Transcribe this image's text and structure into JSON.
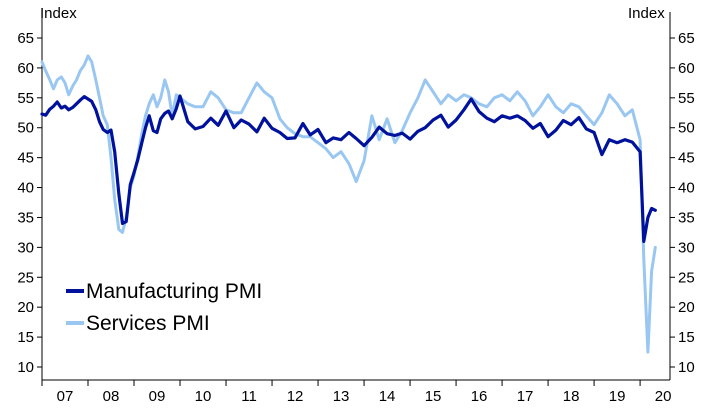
{
  "chart_data": {
    "type": "line",
    "y_unit_left": "Index",
    "y_unit_right": "Index",
    "ylim": [
      10,
      65
    ],
    "y_ticks": [
      10,
      15,
      20,
      25,
      30,
      35,
      40,
      45,
      50,
      55,
      60,
      65
    ],
    "x_start_year": 2007,
    "x_categories": [
      "07",
      "08",
      "09",
      "10",
      "11",
      "12",
      "13",
      "14",
      "15",
      "16",
      "17",
      "18",
      "19",
      "20"
    ],
    "grid": false,
    "legend_position": "bottom-left",
    "colors": {
      "manufacturing": "#00129c",
      "services": "#99c7f2",
      "axis": "#000000"
    },
    "series": [
      {
        "name": "Manufacturing PMI",
        "key": "manufacturing",
        "x": [
          2007.0,
          2007.08,
          2007.17,
          2007.25,
          2007.33,
          2007.42,
          2007.5,
          2007.58,
          2007.67,
          2007.75,
          2007.83,
          2007.92,
          2008.0,
          2008.08,
          2008.17,
          2008.25,
          2008.33,
          2008.42,
          2008.5,
          2008.58,
          2008.67,
          2008.75,
          2008.83,
          2008.92,
          2009.0,
          2009.08,
          2009.17,
          2009.25,
          2009.33,
          2009.42,
          2009.5,
          2009.58,
          2009.67,
          2009.75,
          2009.83,
          2009.92,
          2010.0,
          2010.17,
          2010.33,
          2010.5,
          2010.67,
          2010.83,
          2011.0,
          2011.17,
          2011.33,
          2011.5,
          2011.67,
          2011.83,
          2012.0,
          2012.17,
          2012.33,
          2012.5,
          2012.67,
          2012.83,
          2013.0,
          2013.17,
          2013.33,
          2013.5,
          2013.67,
          2013.83,
          2014.0,
          2014.17,
          2014.33,
          2014.5,
          2014.67,
          2014.83,
          2015.0,
          2015.17,
          2015.33,
          2015.5,
          2015.67,
          2015.83,
          2016.0,
          2016.17,
          2016.33,
          2016.5,
          2016.67,
          2016.83,
          2017.0,
          2017.17,
          2017.33,
          2017.5,
          2017.67,
          2017.83,
          2018.0,
          2018.17,
          2018.33,
          2018.5,
          2018.67,
          2018.83,
          2019.0,
          2019.17,
          2019.33,
          2019.5,
          2019.67,
          2019.83,
          2020.0,
          2020.08,
          2020.17,
          2020.25,
          2020.33
        ],
        "values": [
          52.3,
          52.1,
          53.1,
          53.6,
          54.3,
          53.3,
          53.6,
          53.0,
          53.4,
          54.0,
          54.6,
          55.2,
          54.8,
          54.4,
          53.0,
          51.0,
          49.7,
          49.2,
          49.6,
          46.0,
          39.0,
          34.0,
          34.3,
          40.5,
          42.5,
          44.6,
          47.5,
          50.0,
          52.0,
          49.5,
          49.2,
          51.5,
          52.4,
          52.8,
          51.5,
          53.2,
          55.3,
          51.0,
          49.8,
          50.2,
          51.6,
          50.4,
          52.8,
          50.0,
          51.3,
          50.6,
          49.3,
          51.6,
          49.9,
          49.2,
          48.2,
          48.3,
          50.7,
          48.8,
          49.7,
          47.5,
          48.3,
          48.0,
          49.2,
          48.2,
          47.0,
          48.4,
          50.1,
          49.0,
          48.7,
          49.1,
          48.1,
          49.4,
          50.0,
          51.3,
          52.1,
          50.1,
          51.3,
          53.0,
          54.8,
          52.7,
          51.6,
          51.0,
          52.0,
          51.6,
          52.0,
          51.2,
          49.9,
          50.7,
          48.5,
          49.6,
          51.2,
          50.5,
          51.7,
          49.8,
          49.2,
          45.5,
          48.0,
          47.5,
          48.0,
          47.6,
          46.0,
          31.0,
          35.0,
          36.5,
          36.2
        ],
        "_note_ignore": ""
      },
      {
        "name": "Services PMI",
        "key": "services",
        "x": [
          2007.0,
          2007.08,
          2007.17,
          2007.25,
          2007.33,
          2007.42,
          2007.5,
          2007.58,
          2007.67,
          2007.75,
          2007.83,
          2007.92,
          2008.0,
          2008.08,
          2008.17,
          2008.25,
          2008.33,
          2008.42,
          2008.5,
          2008.58,
          2008.67,
          2008.75,
          2008.83,
          2008.92,
          2009.0,
          2009.08,
          2009.17,
          2009.25,
          2009.33,
          2009.42,
          2009.5,
          2009.58,
          2009.67,
          2009.75,
          2009.83,
          2009.92,
          2010.0,
          2010.17,
          2010.33,
          2010.5,
          2010.67,
          2010.83,
          2011.0,
          2011.17,
          2011.33,
          2011.5,
          2011.67,
          2011.83,
          2012.0,
          2012.17,
          2012.33,
          2012.5,
          2012.67,
          2012.83,
          2013.0,
          2013.17,
          2013.33,
          2013.5,
          2013.67,
          2013.83,
          2014.0,
          2014.17,
          2014.33,
          2014.5,
          2014.67,
          2014.83,
          2015.0,
          2015.17,
          2015.33,
          2015.5,
          2015.67,
          2015.83,
          2016.0,
          2016.17,
          2016.33,
          2016.5,
          2016.67,
          2016.83,
          2017.0,
          2017.17,
          2017.33,
          2017.5,
          2017.67,
          2017.83,
          2018.0,
          2018.17,
          2018.33,
          2018.5,
          2018.67,
          2018.83,
          2019.0,
          2019.17,
          2019.33,
          2019.5,
          2019.67,
          2019.83,
          2020.0,
          2020.08,
          2020.17,
          2020.25,
          2020.33
        ],
        "values": [
          61.0,
          59.5,
          58.0,
          56.5,
          58.0,
          58.5,
          57.5,
          55.5,
          57.0,
          58.0,
          59.5,
          60.5,
          62.0,
          61.0,
          58.0,
          55.0,
          52.0,
          50.5,
          45.0,
          38.0,
          33.0,
          32.5,
          35.0,
          40.0,
          42.0,
          45.0,
          49.0,
          52.0,
          54.0,
          55.5,
          53.5,
          55.0,
          58.0,
          56.0,
          52.0,
          55.5,
          55.0,
          54.0,
          53.5,
          53.5,
          56.0,
          55.0,
          53.0,
          52.5,
          52.5,
          55.0,
          57.5,
          56.0,
          55.0,
          51.5,
          50.0,
          49.0,
          48.5,
          48.5,
          47.5,
          46.5,
          45.0,
          46.0,
          44.0,
          41.0,
          44.5,
          52.0,
          48.0,
          51.5,
          47.5,
          49.5,
          52.5,
          55.0,
          58.0,
          56.0,
          54.0,
          55.5,
          54.5,
          55.5,
          55.0,
          54.0,
          53.5,
          55.0,
          55.5,
          54.5,
          56.0,
          54.5,
          52.0,
          53.5,
          55.5,
          53.5,
          52.5,
          54.0,
          53.5,
          52.0,
          50.5,
          52.5,
          55.5,
          54.0,
          52.0,
          53.0,
          48.0,
          28.0,
          12.5,
          26.0,
          30.0
        ],
        "_note_ignore": ""
      }
    ]
  }
}
